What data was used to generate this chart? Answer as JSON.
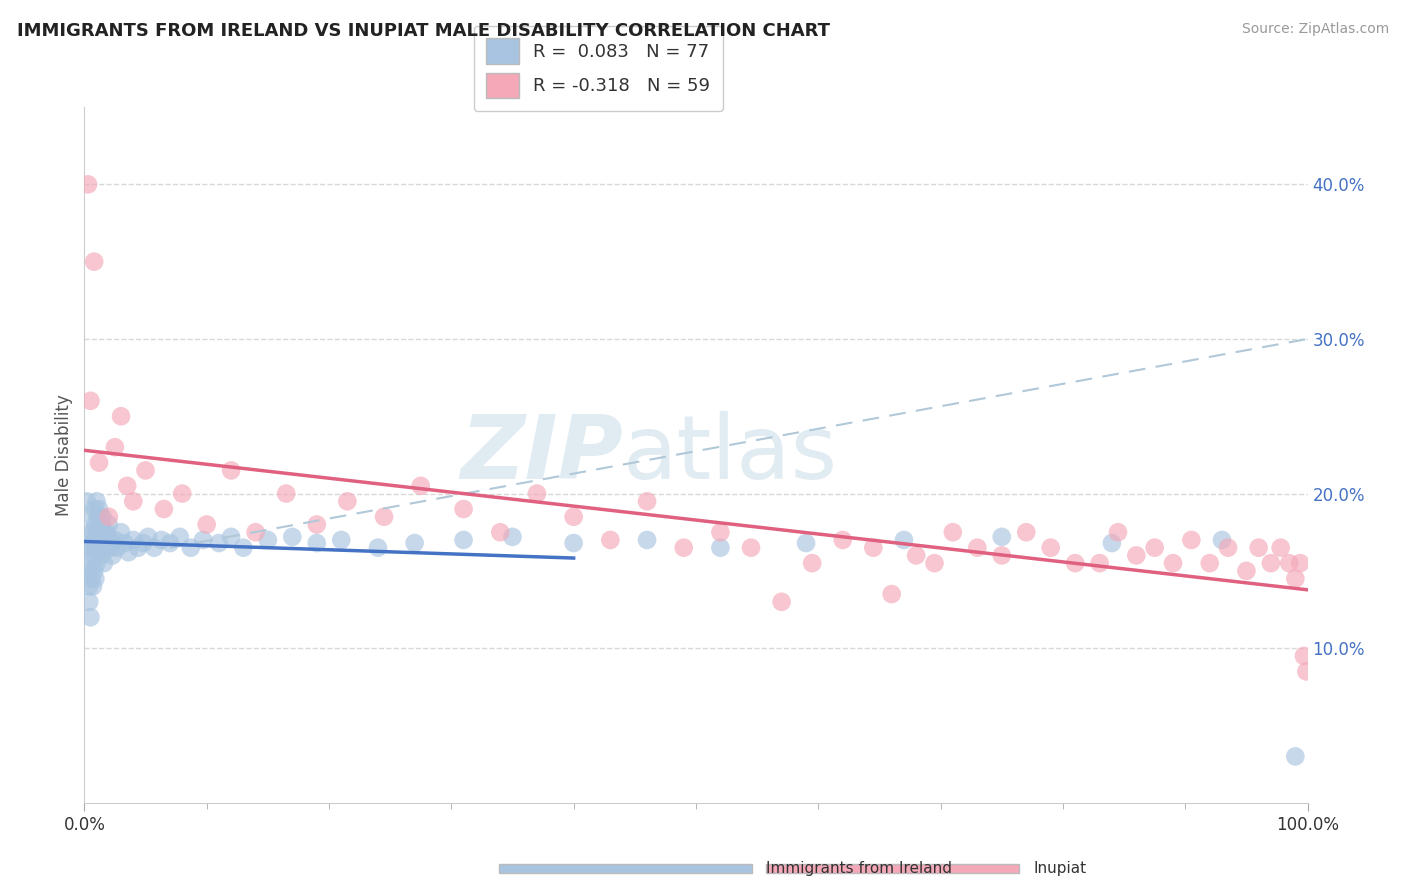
{
  "title": "IMMIGRANTS FROM IRELAND VS INUPIAT MALE DISABILITY CORRELATION CHART",
  "source": "Source: ZipAtlas.com",
  "ylabel": "Male Disability",
  "legend_label1": "Immigrants from Ireland",
  "legend_label2": "Inupiat",
  "r1": 0.083,
  "n1": 77,
  "r2": -0.318,
  "n2": 59,
  "color1": "#a8c4e0",
  "color2": "#f4a8b8",
  "line1_color": "#4472c4",
  "line2_color": "#e06080",
  "dashed_line_color": "#b0c8d8",
  "watermark_zip": "ZIP",
  "watermark_atlas": "atlas",
  "watermark_color": "#c8dce8",
  "background_color": "#ffffff",
  "grid_color": "#d8d8d8",
  "xlim": [
    0.0,
    1.0
  ],
  "ylim": [
    0.0,
    0.45
  ],
  "yticks": [
    0.1,
    0.2,
    0.3,
    0.4
  ],
  "ytick_labels": [
    "10.0%",
    "20.0%",
    "30.0%",
    "40.0%"
  ],
  "xtick_left": "0.0%",
  "xtick_right": "100.0%",
  "tick_color": "#4472c4",
  "ireland_x": [
    0.002,
    0.003,
    0.003,
    0.004,
    0.004,
    0.005,
    0.005,
    0.005,
    0.006,
    0.006,
    0.006,
    0.007,
    0.007,
    0.007,
    0.008,
    0.008,
    0.008,
    0.009,
    0.009,
    0.009,
    0.01,
    0.01,
    0.01,
    0.011,
    0.011,
    0.012,
    0.012,
    0.013,
    0.013,
    0.014,
    0.014,
    0.015,
    0.015,
    0.016,
    0.016,
    0.017,
    0.018,
    0.019,
    0.02,
    0.021,
    0.022,
    0.023,
    0.025,
    0.027,
    0.03,
    0.033,
    0.036,
    0.04,
    0.044,
    0.048,
    0.052,
    0.057,
    0.063,
    0.07,
    0.078,
    0.087,
    0.097,
    0.11,
    0.12,
    0.13,
    0.15,
    0.17,
    0.19,
    0.21,
    0.24,
    0.27,
    0.31,
    0.35,
    0.4,
    0.46,
    0.52,
    0.59,
    0.67,
    0.75,
    0.84,
    0.93,
    0.99
  ],
  "ireland_y": [
    0.195,
    0.165,
    0.15,
    0.14,
    0.13,
    0.175,
    0.155,
    0.12,
    0.185,
    0.165,
    0.145,
    0.175,
    0.16,
    0.14,
    0.19,
    0.17,
    0.15,
    0.18,
    0.165,
    0.145,
    0.195,
    0.175,
    0.155,
    0.185,
    0.165,
    0.19,
    0.17,
    0.185,
    0.165,
    0.18,
    0.16,
    0.185,
    0.165,
    0.175,
    0.155,
    0.17,
    0.175,
    0.165,
    0.18,
    0.17,
    0.165,
    0.16,
    0.17,
    0.165,
    0.175,
    0.168,
    0.162,
    0.17,
    0.165,
    0.168,
    0.172,
    0.165,
    0.17,
    0.168,
    0.172,
    0.165,
    0.17,
    0.168,
    0.172,
    0.165,
    0.17,
    0.172,
    0.168,
    0.17,
    0.165,
    0.168,
    0.17,
    0.172,
    0.168,
    0.17,
    0.165,
    0.168,
    0.17,
    0.172,
    0.168,
    0.17,
    0.03
  ],
  "inupiat_x": [
    0.003,
    0.005,
    0.008,
    0.012,
    0.02,
    0.025,
    0.03,
    0.035,
    0.04,
    0.05,
    0.065,
    0.08,
    0.1,
    0.12,
    0.14,
    0.165,
    0.19,
    0.215,
    0.245,
    0.275,
    0.31,
    0.34,
    0.37,
    0.4,
    0.43,
    0.46,
    0.49,
    0.52,
    0.545,
    0.57,
    0.595,
    0.62,
    0.645,
    0.66,
    0.68,
    0.695,
    0.71,
    0.73,
    0.75,
    0.77,
    0.79,
    0.81,
    0.83,
    0.845,
    0.86,
    0.875,
    0.89,
    0.905,
    0.92,
    0.935,
    0.95,
    0.96,
    0.97,
    0.978,
    0.985,
    0.99,
    0.994,
    0.997,
    0.999
  ],
  "inupiat_y": [
    0.4,
    0.26,
    0.35,
    0.22,
    0.185,
    0.23,
    0.25,
    0.205,
    0.195,
    0.215,
    0.19,
    0.2,
    0.18,
    0.215,
    0.175,
    0.2,
    0.18,
    0.195,
    0.185,
    0.205,
    0.19,
    0.175,
    0.2,
    0.185,
    0.17,
    0.195,
    0.165,
    0.175,
    0.165,
    0.13,
    0.155,
    0.17,
    0.165,
    0.135,
    0.16,
    0.155,
    0.175,
    0.165,
    0.16,
    0.175,
    0.165,
    0.155,
    0.155,
    0.175,
    0.16,
    0.165,
    0.155,
    0.17,
    0.155,
    0.165,
    0.15,
    0.165,
    0.155,
    0.165,
    0.155,
    0.145,
    0.155,
    0.095,
    0.085
  ]
}
